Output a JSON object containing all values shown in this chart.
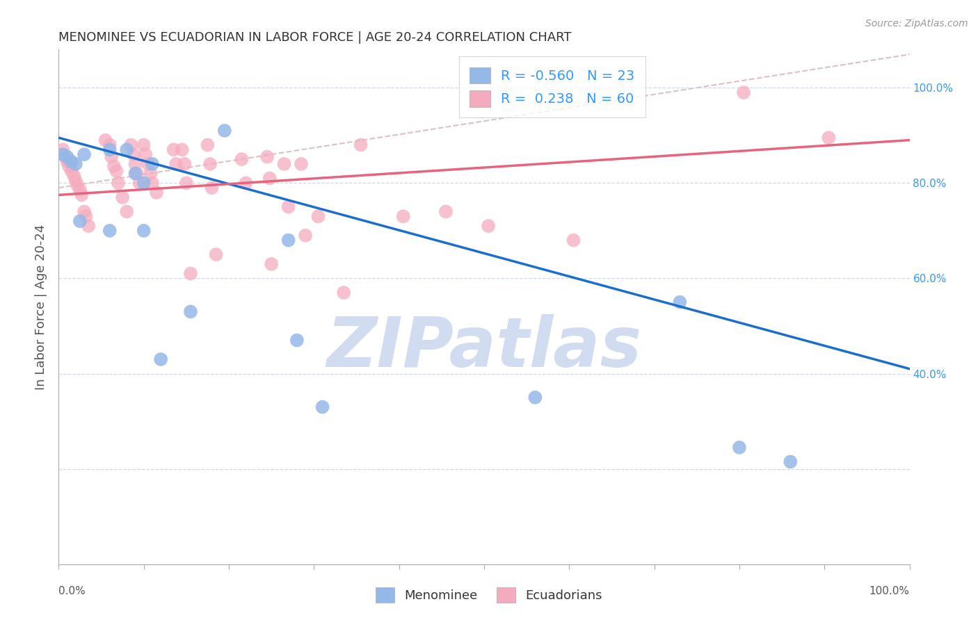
{
  "title": "MENOMINEE VS ECUADORIAN IN LABOR FORCE | AGE 20-24 CORRELATION CHART",
  "source": "Source: ZipAtlas.com",
  "ylabel": "In Labor Force | Age 20-24",
  "xlim": [
    0.0,
    1.0
  ],
  "ylim": [
    0.0,
    1.08
  ],
  "xticks": [
    0.0,
    0.1,
    0.2,
    0.3,
    0.4,
    0.5,
    0.6,
    0.7,
    0.8,
    0.9,
    1.0
  ],
  "yticks": [
    0.0,
    0.2,
    0.4,
    0.6,
    0.8,
    1.0
  ],
  "right_yticklabels": [
    "",
    "",
    "40.0%",
    "60.0%",
    "80.0%",
    "100.0%"
  ],
  "x_left_label": "0.0%",
  "x_right_label": "100.0%",
  "menominee_R": -0.56,
  "menominee_N": 23,
  "ecuadorian_R": 0.238,
  "ecuadorian_N": 60,
  "menominee_color": "#94b8e8",
  "ecuadorian_color": "#f5abbe",
  "blue_line_color": "#1a6fce",
  "pink_line_color": "#e8637c",
  "dashed_line_color": "#d4b0b8",
  "watermark_color": "#ccd9f0",
  "menominee_x": [
    0.005,
    0.01,
    0.015,
    0.02,
    0.025,
    0.03,
    0.06,
    0.06,
    0.08,
    0.09,
    0.1,
    0.1,
    0.11,
    0.12,
    0.155,
    0.195,
    0.27,
    0.28,
    0.31,
    0.56,
    0.73,
    0.8,
    0.86
  ],
  "menominee_y": [
    0.86,
    0.855,
    0.845,
    0.84,
    0.72,
    0.86,
    0.87,
    0.7,
    0.87,
    0.82,
    0.8,
    0.7,
    0.84,
    0.43,
    0.53,
    0.91,
    0.68,
    0.47,
    0.33,
    0.35,
    0.55,
    0.245,
    0.215
  ],
  "ecuadorian_x": [
    0.005,
    0.008,
    0.01,
    0.012,
    0.015,
    0.018,
    0.02,
    0.022,
    0.025,
    0.027,
    0.03,
    0.032,
    0.035,
    0.055,
    0.06,
    0.062,
    0.065,
    0.068,
    0.07,
    0.075,
    0.08,
    0.085,
    0.088,
    0.09,
    0.092,
    0.095,
    0.1,
    0.102,
    0.105,
    0.108,
    0.11,
    0.115,
    0.135,
    0.138,
    0.145,
    0.148,
    0.15,
    0.155,
    0.175,
    0.178,
    0.18,
    0.185,
    0.215,
    0.22,
    0.245,
    0.248,
    0.25,
    0.265,
    0.27,
    0.285,
    0.29,
    0.305,
    0.335,
    0.355,
    0.405,
    0.455,
    0.505,
    0.605,
    0.805,
    0.905
  ],
  "ecuadorian_y": [
    0.87,
    0.855,
    0.845,
    0.835,
    0.825,
    0.815,
    0.805,
    0.795,
    0.785,
    0.775,
    0.74,
    0.73,
    0.71,
    0.89,
    0.88,
    0.855,
    0.835,
    0.825,
    0.8,
    0.77,
    0.74,
    0.88,
    0.86,
    0.84,
    0.82,
    0.8,
    0.88,
    0.86,
    0.84,
    0.82,
    0.8,
    0.78,
    0.87,
    0.84,
    0.87,
    0.84,
    0.8,
    0.61,
    0.88,
    0.84,
    0.79,
    0.65,
    0.85,
    0.8,
    0.855,
    0.81,
    0.63,
    0.84,
    0.75,
    0.84,
    0.69,
    0.73,
    0.57,
    0.88,
    0.73,
    0.74,
    0.71,
    0.68,
    0.99,
    0.895
  ],
  "menominee_line_x": [
    0.0,
    1.0
  ],
  "menominee_line_y": [
    0.895,
    0.41
  ],
  "ecuadorian_line_x": [
    0.0,
    1.0
  ],
  "ecuadorian_line_y": [
    0.775,
    0.89
  ],
  "dashed_line_x": [
    0.0,
    1.0
  ],
  "dashed_line_y": [
    0.79,
    1.07
  ],
  "background_color": "#ffffff",
  "grid_color": "#d0d8e8",
  "title_color": "#333333",
  "axis_label_color": "#555555",
  "right_ytick_color": "#3399ff"
}
